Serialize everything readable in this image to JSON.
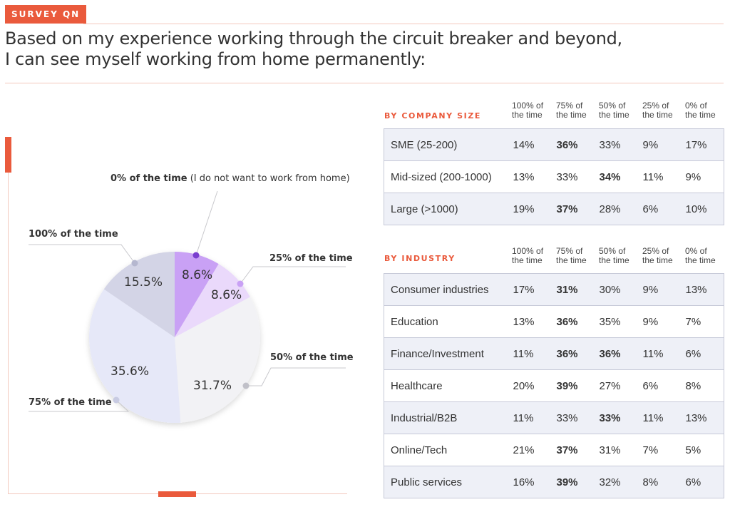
{
  "header": {
    "tag": "SURVEY QN",
    "question_line1": "Based on my experience working through the circuit breaker and beyond,",
    "question_line2": "I can see myself working from home permanently:"
  },
  "chart_data": [
    {
      "type": "pie",
      "slices": [
        {
          "label": "0% of the time",
          "label_suffix": " (I do not want to work from home)",
          "value": 8.6,
          "display": "8.6%",
          "color": "#c9a1f5",
          "dot": "#7a3fcf"
        },
        {
          "label": "25% of the time",
          "value": 8.6,
          "display": "8.6%",
          "color": "#ead9fb",
          "dot": "#c9a1f5"
        },
        {
          "label": "50% of the time",
          "value": 31.7,
          "display": "31.7%",
          "color": "#f2f2f5",
          "dot": "#c0c0c8"
        },
        {
          "label": "75% of the time",
          "value": 35.6,
          "display": "35.6%",
          "color": "#e6e8f8",
          "dot": "#c8cbe2"
        },
        {
          "label": "100% of the time",
          "value": 15.5,
          "display": "15.5%",
          "color": "#d3d4e6",
          "dot": "#b5b7cf"
        }
      ]
    },
    {
      "type": "table",
      "title": "BY COMPANY SIZE",
      "columns": [
        [
          "100% of",
          "the time"
        ],
        [
          "75% of",
          "the time"
        ],
        [
          "50% of",
          "the time"
        ],
        [
          "25% of",
          "the time"
        ],
        [
          "0% of",
          "the time"
        ]
      ],
      "rows": [
        {
          "label": "SME (25-200)",
          "values": [
            "14%",
            "36%",
            "33%",
            "9%",
            "17%"
          ],
          "bold": [
            1
          ]
        },
        {
          "label": "Mid-sized (200-1000)",
          "values": [
            "13%",
            "33%",
            "34%",
            "11%",
            "9%"
          ],
          "bold": [
            2
          ]
        },
        {
          "label": "Large (>1000)",
          "values": [
            "19%",
            "37%",
            "28%",
            "6%",
            "10%"
          ],
          "bold": [
            1
          ]
        }
      ]
    },
    {
      "type": "table",
      "title": "BY INDUSTRY",
      "columns": [
        [
          "100% of",
          "the time"
        ],
        [
          "75% of",
          "the time"
        ],
        [
          "50% of",
          "the time"
        ],
        [
          "25% of",
          "the time"
        ],
        [
          "0% of",
          "the time"
        ]
      ],
      "rows": [
        {
          "label": "Consumer industries",
          "values": [
            "17%",
            "31%",
            "30%",
            "9%",
            "13%"
          ],
          "bold": [
            1
          ]
        },
        {
          "label": "Education",
          "values": [
            "13%",
            "36%",
            "35%",
            "9%",
            "7%"
          ],
          "bold": [
            1
          ]
        },
        {
          "label": "Finance/Investment",
          "values": [
            "11%",
            "36%",
            "36%",
            "11%",
            "6%"
          ],
          "bold": [
            1,
            2
          ]
        },
        {
          "label": "Healthcare",
          "values": [
            "20%",
            "39%",
            "27%",
            "6%",
            "8%"
          ],
          "bold": [
            1
          ]
        },
        {
          "label": "Industrial/B2B",
          "values": [
            "11%",
            "33%",
            "33%",
            "11%",
            "13%"
          ],
          "bold": [
            2
          ]
        },
        {
          "label": "Online/Tech",
          "values": [
            "21%",
            "37%",
            "31%",
            "7%",
            "5%"
          ],
          "bold": [
            1
          ]
        },
        {
          "label": "Public services",
          "values": [
            "16%",
            "39%",
            "32%",
            "8%",
            "6%"
          ],
          "bold": [
            1
          ]
        }
      ]
    }
  ],
  "colors": {
    "accent": "#ea5a3c",
    "rule": "#f3c9bd",
    "table_border": "#c6c9d8",
    "row_shade": "#eef0f7"
  }
}
